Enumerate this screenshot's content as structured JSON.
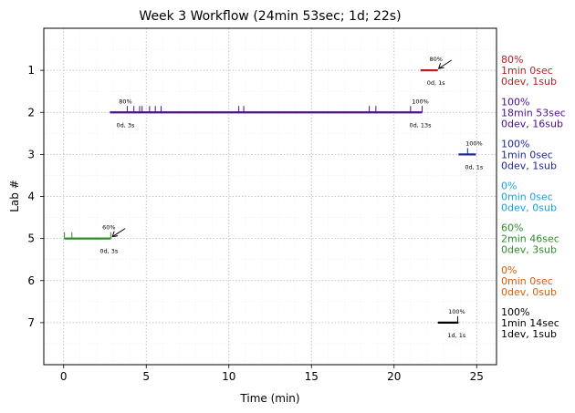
{
  "chart_data": {
    "type": "timeline",
    "title": "Week 3 Workflow (24min 53sec; 1d; 22s)",
    "xlabel": "Time (min)",
    "ylabel": "Lab #",
    "xlim": [
      -1.2,
      26.2
    ],
    "ylim": [
      8,
      0
    ],
    "x_ticks": [
      0,
      5,
      10,
      15,
      20,
      25
    ],
    "y_ticks": [
      1,
      2,
      3,
      4,
      5,
      6,
      7
    ],
    "grid": true,
    "labs": [
      {
        "lab": 1,
        "color": "#b22222",
        "segments": [
          {
            "start": 21.6,
            "end": 22.65,
            "pct": "80%",
            "sub": "0d, 1s"
          }
        ],
        "ticks": [],
        "arrow_x": 22.7,
        "summary": [
          "80%",
          "1min 0sec",
          "0dev, 1sub"
        ]
      },
      {
        "lab": 2,
        "color": "#4b0f8a",
        "segments": [
          {
            "start": 2.8,
            "end": 3.85,
            "pct": "80%",
            "sub": "0d, 3s"
          },
          {
            "start": 3.85,
            "end": 21.7,
            "pct": "100%",
            "sub": "0d, 13s"
          }
        ],
        "ticks": [
          3.85,
          4.25,
          4.6,
          4.75,
          5.2,
          5.55,
          5.9,
          10.6,
          10.9,
          18.5,
          18.9,
          21.0,
          21.7
        ],
        "summary": [
          "100%",
          "18min 53sec",
          "0dev, 16sub"
        ]
      },
      {
        "lab": 3,
        "color": "#1f2a8a",
        "segments": [
          {
            "start": 23.9,
            "end": 24.95,
            "pct": "100%",
            "sub": "0d, 1s"
          }
        ],
        "ticks": [
          24.45
        ],
        "summary": [
          "100%",
          "1min 0sec",
          "0dev, 1sub"
        ]
      },
      {
        "lab": 4,
        "color": "#1f9fd4",
        "segments": [],
        "ticks": [],
        "summary": [
          "0%",
          "0min 0sec",
          "0dev, 0sub"
        ]
      },
      {
        "lab": 5,
        "color": "#2e8b2e",
        "segments": [
          {
            "start": 0.05,
            "end": 2.85,
            "pct": "60%",
            "sub": "0d, 3s"
          }
        ],
        "ticks": [
          0.05,
          0.5,
          2.85
        ],
        "arrow_x": 2.95,
        "summary": [
          "60%",
          "2min 46sec",
          "0dev, 3sub"
        ]
      },
      {
        "lab": 6,
        "color": "#e05a00",
        "segments": [],
        "ticks": [],
        "summary": [
          "0%",
          "0min 0sec",
          "0dev, 0sub"
        ]
      },
      {
        "lab": 7,
        "color": "#000000",
        "segments": [
          {
            "start": 22.65,
            "end": 23.9,
            "pct": "100%",
            "sub": "1d, 1s"
          }
        ],
        "ticks": [
          23.85
        ],
        "summary": [
          "100%",
          "1min 14sec",
          "1dev, 1sub"
        ]
      }
    ]
  }
}
